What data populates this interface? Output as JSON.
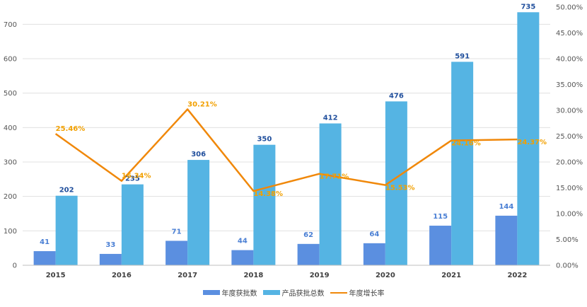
{
  "chart_data": {
    "type": "bar+line",
    "categories": [
      "2015",
      "2016",
      "2017",
      "2018",
      "2019",
      "2020",
      "2021",
      "2022"
    ],
    "series": [
      {
        "name": "年度获批数",
        "kind": "bar",
        "axis": "left",
        "color": "#5b8fe0",
        "values": [
          41,
          33,
          71,
          44,
          62,
          64,
          115,
          144
        ],
        "labels": [
          "41",
          "33",
          "71",
          "44",
          "62",
          "64",
          "115",
          "144"
        ]
      },
      {
        "name": "产品获批总数",
        "kind": "bar",
        "axis": "left",
        "color": "#55b4e3",
        "values": [
          202,
          235,
          306,
          350,
          412,
          476,
          591,
          735
        ],
        "labels": [
          "202",
          "235",
          "306",
          "350",
          "412",
          "476",
          "591",
          "735"
        ]
      },
      {
        "name": "年度增长率",
        "kind": "line",
        "axis": "right",
        "color": "#f0880a",
        "values": [
          25.46,
          16.34,
          30.21,
          14.38,
          17.71,
          15.53,
          24.16,
          24.37
        ],
        "labels": [
          "25.46%",
          "16.34%",
          "30.21%",
          "14.38%",
          "17.71%",
          "15.53%",
          "24.16%",
          "24.37%"
        ]
      }
    ],
    "y_left": {
      "min": 0,
      "max": 750,
      "ticks": [
        "0",
        "100",
        "200",
        "300",
        "400",
        "500",
        "600",
        "700"
      ],
      "tick_values": [
        0,
        100,
        200,
        300,
        400,
        500,
        600,
        700
      ]
    },
    "y_right": {
      "min": 0,
      "max": 50,
      "ticks": [
        "0.00%",
        "5.00%",
        "10.00%",
        "15.00%",
        "20.00%",
        "25.00%",
        "30.00%",
        "35.00%",
        "40.00%",
        "45.00%",
        "50.00%"
      ],
      "tick_values": [
        0,
        5,
        10,
        15,
        20,
        25,
        30,
        35,
        40,
        45,
        50
      ]
    },
    "grid": true,
    "legend_position": "bottom"
  },
  "legend": {
    "item1": "年度获批数",
    "item2": "产品获批总数",
    "item3": "年度增长率"
  }
}
